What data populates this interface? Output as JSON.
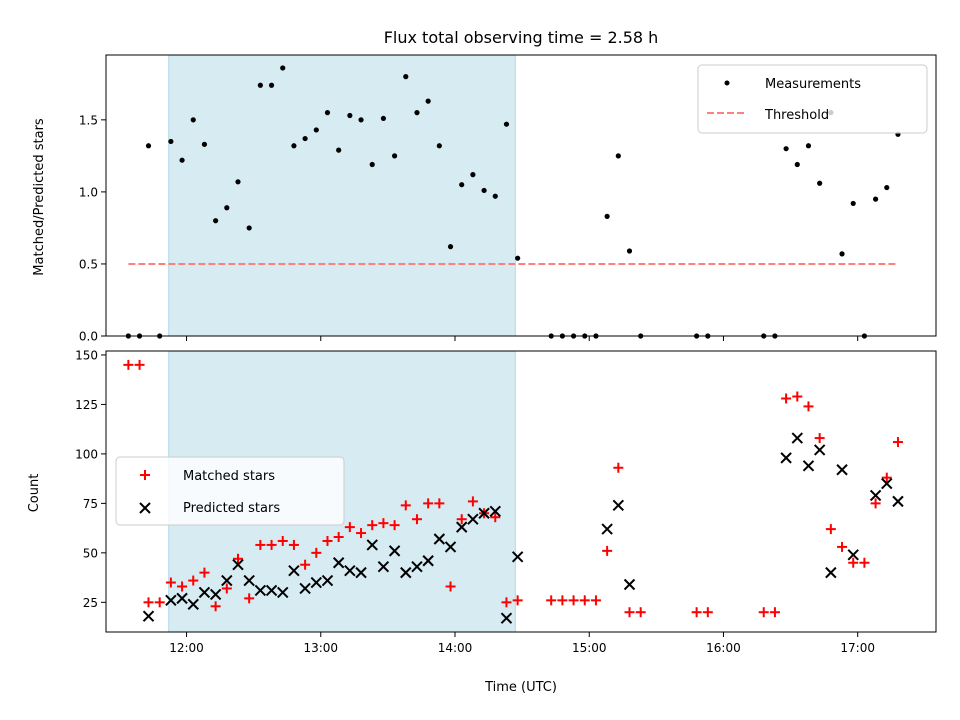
{
  "chart_data": [
    {
      "type": "scatter",
      "title": "Flux total observing time = 2.58 h",
      "xlabel": "",
      "ylabel": "Matched/Predicted stars",
      "ylim": [
        0,
        1.95
      ],
      "yticks": [
        0.0,
        0.5,
        1.0,
        1.5
      ],
      "ytick_labels": [
        "0.0",
        "0.5",
        "1.0",
        "1.5"
      ],
      "xlim": [
        "11:24",
        "17:35"
      ],
      "xticks": [
        "12:00",
        "13:00",
        "14:00",
        "15:00",
        "16:00",
        "17:00"
      ],
      "legend": {
        "placement": "top-right",
        "entries": [
          "Measurements",
          "Threshold"
        ]
      },
      "shaded_interval": [
        "11:52",
        "14:27"
      ],
      "colors": {
        "measurements": "#000000",
        "threshold": "#ff7f7f",
        "shade": "#add8e6"
      },
      "series": [
        {
          "name": "Measurements",
          "x": [
            "11:34",
            "11:39",
            "11:43",
            "11:48",
            "11:53",
            "11:58",
            "12:03",
            "12:08",
            "12:13",
            "12:18",
            "12:23",
            "12:28",
            "12:33",
            "12:38",
            "12:43",
            "12:48",
            "12:53",
            "12:58",
            "13:03",
            "13:08",
            "13:13",
            "13:18",
            "13:23",
            "13:28",
            "13:33",
            "13:38",
            "13:43",
            "13:48",
            "13:53",
            "13:58",
            "14:03",
            "14:08",
            "14:13",
            "14:18",
            "14:23",
            "14:28",
            "14:43",
            "14:48",
            "14:53",
            "14:58",
            "15:03",
            "15:08",
            "15:13",
            "15:18",
            "15:23",
            "15:48",
            "15:53",
            "16:18",
            "16:23",
            "16:28",
            "16:33",
            "16:38",
            "16:43",
            "16:48",
            "16:53",
            "16:58",
            "17:03",
            "17:08",
            "17:13",
            "17:18"
          ],
          "y": [
            0.0,
            0.0,
            1.32,
            0.0,
            1.35,
            1.22,
            1.5,
            1.33,
            0.8,
            0.89,
            1.07,
            0.75,
            1.74,
            1.74,
            1.86,
            1.32,
            1.37,
            1.43,
            1.55,
            1.29,
            1.53,
            1.5,
            1.19,
            1.51,
            1.25,
            1.8,
            1.55,
            1.63,
            1.32,
            0.62,
            1.05,
            1.12,
            1.01,
            0.97,
            1.47,
            0.54,
            0.0,
            0.0,
            0.0,
            0.0,
            0.0,
            0.83,
            1.25,
            0.59,
            0.0,
            0.0,
            0.0,
            0.0,
            0.0,
            1.3,
            1.19,
            1.32,
            1.06,
            1.55,
            0.57,
            0.92,
            0.0,
            0.95,
            1.03,
            1.4
          ]
        },
        {
          "name": "Threshold",
          "kind": "dashed-line",
          "x": [
            "11:34",
            "17:18"
          ],
          "y": [
            0.5,
            0.5
          ]
        }
      ]
    },
    {
      "type": "scatter",
      "title": "",
      "xlabel": "Time (UTC)",
      "ylabel": "Count",
      "ylim": [
        10,
        152
      ],
      "yticks": [
        25,
        50,
        75,
        100,
        125,
        150
      ],
      "ytick_labels": [
        "25",
        "50",
        "75",
        "100",
        "125",
        "150"
      ],
      "xlim": [
        "11:24",
        "17:35"
      ],
      "xticks": [
        "12:00",
        "13:00",
        "14:00",
        "15:00",
        "16:00",
        "17:00"
      ],
      "xtick_labels": [
        "12:00",
        "13:00",
        "14:00",
        "15:00",
        "16:00",
        "17:00"
      ],
      "legend": {
        "placement": "center-left",
        "entries": [
          "Matched stars",
          "Predicted stars"
        ]
      },
      "shaded_interval": [
        "11:52",
        "14:27"
      ],
      "colors": {
        "matched": "#ff0000",
        "predicted": "#000000",
        "shade": "#add8e6"
      },
      "series": [
        {
          "name": "Matched stars",
          "marker": "plus",
          "x": [
            "11:34",
            "11:39",
            "11:43",
            "11:48",
            "11:53",
            "11:58",
            "12:03",
            "12:08",
            "12:13",
            "12:18",
            "12:23",
            "12:28",
            "12:33",
            "12:38",
            "12:43",
            "12:48",
            "12:53",
            "12:58",
            "13:03",
            "13:08",
            "13:13",
            "13:18",
            "13:23",
            "13:28",
            "13:33",
            "13:38",
            "13:43",
            "13:48",
            "13:53",
            "13:58",
            "14:03",
            "14:08",
            "14:13",
            "14:18",
            "14:23",
            "14:28",
            "14:43",
            "14:48",
            "14:53",
            "14:58",
            "15:03",
            "15:08",
            "15:13",
            "15:18",
            "15:23",
            "15:48",
            "15:53",
            "16:18",
            "16:23",
            "16:28",
            "16:33",
            "16:38",
            "16:43",
            "16:48",
            "16:53",
            "16:58",
            "17:03",
            "17:08",
            "17:13",
            "17:18"
          ],
          "y": [
            145,
            145,
            25,
            25,
            35,
            33,
            36,
            40,
            23,
            32,
            47,
            27,
            54,
            54,
            56,
            54,
            44,
            50,
            56,
            58,
            63,
            60,
            64,
            65,
            64,
            74,
            67,
            75,
            75,
            33,
            67,
            76,
            70,
            68,
            25,
            26,
            26,
            26,
            26,
            26,
            26,
            51,
            93,
            20,
            20,
            20,
            20,
            20,
            20,
            128,
            129,
            124,
            108,
            62,
            53,
            45,
            45,
            75,
            88,
            106
          ]
        },
        {
          "name": "Predicted stars",
          "marker": "x",
          "x": [
            "11:43",
            "11:53",
            "11:58",
            "12:03",
            "12:08",
            "12:13",
            "12:18",
            "12:23",
            "12:28",
            "12:33",
            "12:38",
            "12:43",
            "12:48",
            "12:53",
            "12:58",
            "13:03",
            "13:08",
            "13:13",
            "13:18",
            "13:23",
            "13:28",
            "13:33",
            "13:38",
            "13:43",
            "13:48",
            "13:53",
            "13:58",
            "14:03",
            "14:08",
            "14:13",
            "14:18",
            "14:23",
            "14:28",
            "15:08",
            "15:13",
            "15:18",
            "16:28",
            "16:33",
            "16:38",
            "16:43",
            "16:48",
            "16:53",
            "16:58",
            "17:08",
            "17:13",
            "17:18"
          ],
          "y": [
            18,
            26,
            27,
            24,
            30,
            29,
            36,
            44,
            36,
            31,
            31,
            30,
            41,
            32,
            35,
            36,
            45,
            41,
            40,
            54,
            43,
            51,
            40,
            43,
            46,
            57,
            53,
            63,
            67,
            70,
            71,
            17,
            48,
            62,
            74,
            34,
            98,
            108,
            94,
            102,
            40,
            92,
            49,
            79,
            85,
            76
          ]
        }
      ]
    }
  ]
}
